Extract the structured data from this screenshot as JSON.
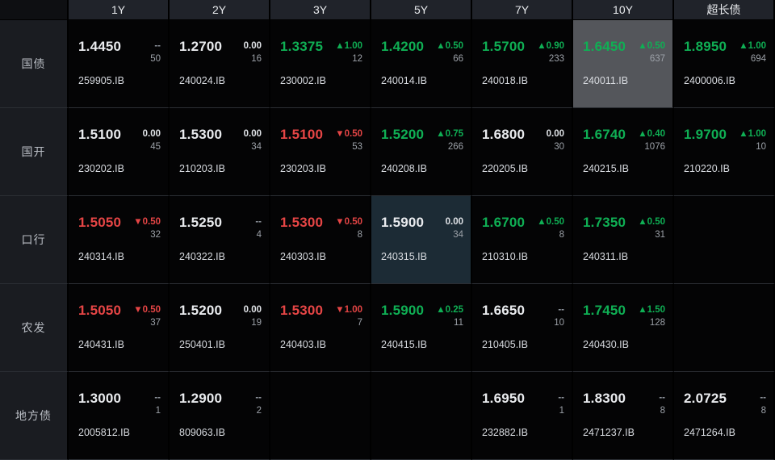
{
  "board": {
    "columns": [
      "1Y",
      "2Y",
      "3Y",
      "5Y",
      "7Y",
      "10Y",
      "超长债"
    ],
    "rows": [
      {
        "label": "国债",
        "cells": [
          {
            "price": "1.4450",
            "change": "--",
            "trend": "none",
            "volume": "50",
            "code": "259905.IB"
          },
          {
            "price": "1.2700",
            "change": "0.00",
            "trend": "flat",
            "volume": "16",
            "code": "240024.IB"
          },
          {
            "price": "1.3375",
            "change": "▲1.00",
            "trend": "up",
            "volume": "12",
            "code": "230002.IB"
          },
          {
            "price": "1.4200",
            "change": "▲0.50",
            "trend": "up",
            "volume": "66",
            "code": "240014.IB"
          },
          {
            "price": "1.5700",
            "change": "▲0.90",
            "trend": "up",
            "volume": "233",
            "code": "240018.IB"
          },
          {
            "price": "1.6450",
            "change": "▲0.50",
            "trend": "up",
            "volume": "637",
            "code": "240011.IB",
            "highlight": "gray"
          },
          {
            "price": "1.8950",
            "change": "▲1.00",
            "trend": "up",
            "volume": "694",
            "code": "2400006.IB"
          }
        ]
      },
      {
        "label": "国开",
        "cells": [
          {
            "price": "1.5100",
            "change": "0.00",
            "trend": "flat",
            "volume": "45",
            "code": "230202.IB"
          },
          {
            "price": "1.5300",
            "change": "0.00",
            "trend": "flat",
            "volume": "34",
            "code": "210203.IB"
          },
          {
            "price": "1.5100",
            "change": "▼0.50",
            "trend": "down",
            "volume": "53",
            "code": "230203.IB"
          },
          {
            "price": "1.5200",
            "change": "▲0.75",
            "trend": "up",
            "volume": "266",
            "code": "240208.IB"
          },
          {
            "price": "1.6800",
            "change": "0.00",
            "trend": "flat",
            "volume": "30",
            "code": "220205.IB"
          },
          {
            "price": "1.6740",
            "change": "▲0.40",
            "trend": "up",
            "volume": "1076",
            "code": "240215.IB"
          },
          {
            "price": "1.9700",
            "change": "▲1.00",
            "trend": "up",
            "volume": "10",
            "code": "210220.IB"
          }
        ]
      },
      {
        "label": "口行",
        "cells": [
          {
            "price": "1.5050",
            "change": "▼0.50",
            "trend": "down",
            "volume": "32",
            "code": "240314.IB"
          },
          {
            "price": "1.5250",
            "change": "--",
            "trend": "none",
            "volume": "4",
            "code": "240322.IB"
          },
          {
            "price": "1.5300",
            "change": "▼0.50",
            "trend": "down",
            "volume": "8",
            "code": "240303.IB"
          },
          {
            "price": "1.5900",
            "change": "0.00",
            "trend": "flat",
            "volume": "34",
            "code": "240315.IB",
            "highlight": "blue"
          },
          {
            "price": "1.6700",
            "change": "▲0.50",
            "trend": "up",
            "volume": "8",
            "code": "210310.IB"
          },
          {
            "price": "1.7350",
            "change": "▲0.50",
            "trend": "up",
            "volume": "31",
            "code": "240311.IB"
          },
          null
        ]
      },
      {
        "label": "农发",
        "cells": [
          {
            "price": "1.5050",
            "change": "▼0.50",
            "trend": "down",
            "volume": "37",
            "code": "240431.IB"
          },
          {
            "price": "1.5200",
            "change": "0.00",
            "trend": "flat",
            "volume": "19",
            "code": "250401.IB"
          },
          {
            "price": "1.5300",
            "change": "▼1.00",
            "trend": "down",
            "volume": "7",
            "code": "240403.IB"
          },
          {
            "price": "1.5900",
            "change": "▲0.25",
            "trend": "up",
            "volume": "11",
            "code": "240415.IB"
          },
          {
            "price": "1.6650",
            "change": "--",
            "trend": "none",
            "volume": "10",
            "code": "210405.IB"
          },
          {
            "price": "1.7450",
            "change": "▲1.50",
            "trend": "up",
            "volume": "128",
            "code": "240430.IB"
          },
          null
        ]
      },
      {
        "label": "地方债",
        "cells": [
          {
            "price": "1.3000",
            "change": "--",
            "trend": "none",
            "volume": "1",
            "code": "2005812.IB"
          },
          {
            "price": "1.2900",
            "change": "--",
            "trend": "none",
            "volume": "2",
            "code": "809063.IB"
          },
          null,
          null,
          {
            "price": "1.6950",
            "change": "--",
            "trend": "none",
            "volume": "1",
            "code": "232882.IB"
          },
          {
            "price": "1.8300",
            "change": "--",
            "trend": "none",
            "volume": "8",
            "code": "2471237.IB"
          },
          {
            "price": "2.0725",
            "change": "--",
            "trend": "none",
            "volume": "8",
            "code": "2471264.IB"
          }
        ]
      }
    ]
  },
  "colors": {
    "up_green": "#0faf54",
    "down_red": "#e54545",
    "neutral_white": "#e9ebee",
    "highlight_gray": "#54565b",
    "highlight_blue": "#1c2b35",
    "header_bg": "#20232a",
    "label_bg": "#1a1c21"
  }
}
